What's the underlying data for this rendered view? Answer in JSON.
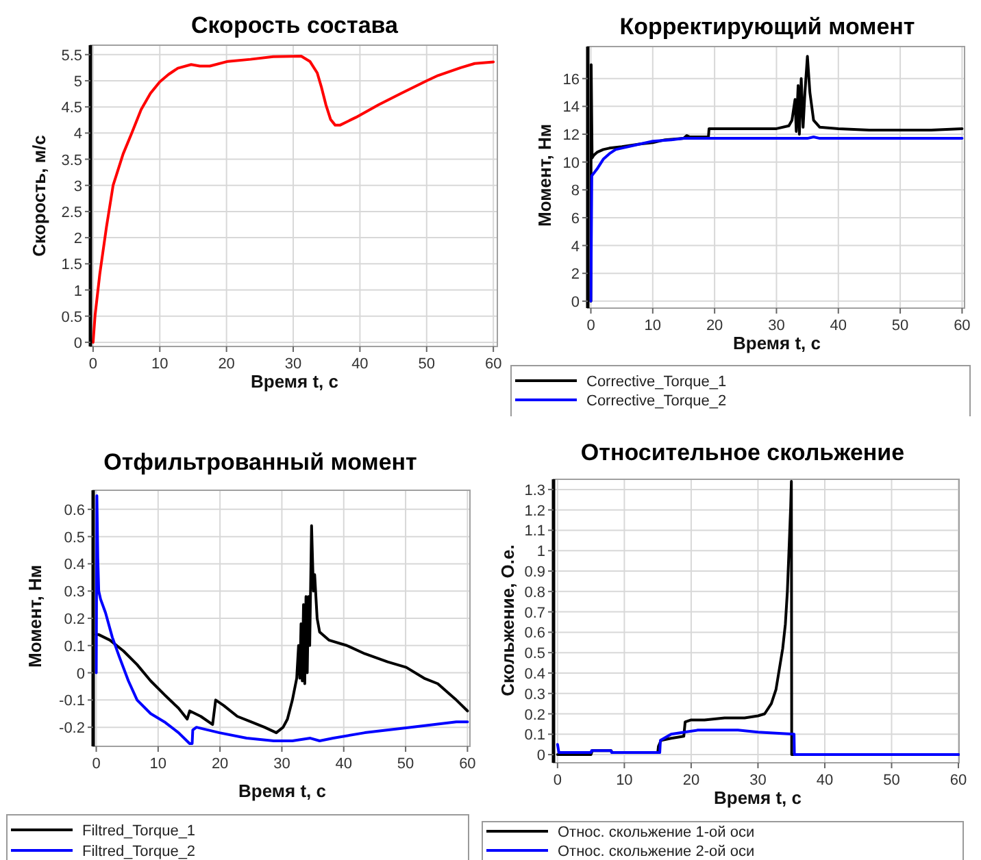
{
  "chart_data": [
    {
      "type": "line",
      "title": "Скорость состава",
      "xlabel": "Время t, с",
      "ylabel": "Скорость, м/с",
      "xlim": [
        -0.4,
        60.6
      ],
      "ylim": [
        -0.08,
        5.68
      ],
      "xticks": [
        0,
        10,
        20,
        30,
        40,
        50,
        60
      ],
      "yticks": [
        0,
        0.5,
        1,
        1.5,
        2,
        2.5,
        3,
        3.5,
        4,
        4.5,
        5,
        5.5
      ],
      "grid": true,
      "series": [
        {
          "color": "#ff0000",
          "x": [
            0,
            0.3,
            1,
            2,
            3,
            4.5,
            5.8,
            7.2,
            8.6,
            10,
            11.3,
            12.7,
            14.7,
            16,
            17.5,
            20.2,
            23.6,
            27,
            31.2,
            32.5,
            33.6,
            34.2,
            34.9,
            35.6,
            36.3,
            37,
            39.4,
            42.8,
            46.2,
            50,
            51.7,
            55.1,
            57.2,
            60
          ],
          "values": [
            0,
            0.52,
            1.3,
            2.2,
            3.0,
            3.6,
            4.0,
            4.45,
            4.76,
            4.98,
            5.12,
            5.24,
            5.31,
            5.28,
            5.28,
            5.37,
            5.41,
            5.46,
            5.47,
            5.37,
            5.15,
            4.89,
            4.54,
            4.26,
            4.15,
            4.15,
            4.3,
            4.54,
            4.76,
            5.0,
            5.1,
            5.25,
            5.33,
            5.36
          ]
        }
      ]
    },
    {
      "type": "line",
      "title": "Корректирующий момент",
      "xlabel": "Время t, с",
      "ylabel": "Момент, Нм",
      "xlim": [
        -0.5,
        60.4
      ],
      "ylim": [
        -0.5,
        18.3
      ],
      "xticks": [
        0,
        10,
        20,
        30,
        40,
        50,
        60
      ],
      "yticks": [
        0,
        2,
        4,
        6,
        8,
        10,
        12,
        14,
        16
      ],
      "grid": true,
      "legend": "bottom",
      "series": [
        {
          "name": "Corrective_Torque_1",
          "color": "#000000",
          "x": [
            0,
            0.05,
            0.2,
            0.5,
            1,
            2,
            3,
            5,
            8,
            10,
            12,
            15,
            15.5,
            16,
            19,
            19.1,
            25,
            30,
            32,
            32.5,
            33,
            33.2,
            33.5,
            33.7,
            34,
            34.3,
            34.6,
            35,
            35.4,
            36,
            37,
            40,
            45,
            50,
            55,
            60
          ],
          "values": [
            0,
            17,
            10.3,
            10.5,
            10.7,
            10.9,
            11.0,
            11.1,
            11.3,
            11.4,
            11.6,
            11.7,
            11.9,
            11.8,
            11.8,
            12.4,
            12.4,
            12.4,
            12.6,
            13,
            14.5,
            12.2,
            15.5,
            12,
            16,
            12.5,
            15,
            17.6,
            15,
            13,
            12.5,
            12.4,
            12.3,
            12.3,
            12.3,
            12.4
          ]
        },
        {
          "name": "Corrective_Torque_2",
          "color": "#0000ff",
          "x": [
            0,
            0.15,
            0.3,
            1,
            2,
            3,
            4,
            5,
            7,
            10,
            13,
            15,
            16,
            35,
            36,
            37,
            60
          ],
          "values": [
            0,
            9.0,
            9.1,
            9.5,
            10.2,
            10.6,
            10.9,
            11.0,
            11.2,
            11.5,
            11.6,
            11.7,
            11.7,
            11.7,
            11.8,
            11.7,
            11.7
          ]
        }
      ]
    },
    {
      "type": "line",
      "title": "Отфильтрованный момент",
      "xlabel": "Время t, с",
      "ylabel": "Момент, Нм",
      "xlim": [
        -0.5,
        60.4
      ],
      "ylim": [
        -0.27,
        0.67
      ],
      "xticks": [
        0,
        10,
        20,
        30,
        40,
        50,
        60
      ],
      "yticks": [
        -0.2,
        -0.1,
        0,
        0.1,
        0.2,
        0.3,
        0.4,
        0.5,
        0.6
      ],
      "grid": true,
      "legend": "bottom",
      "series": [
        {
          "name": "Filtred_Torque_1",
          "color": "#000000",
          "x": [
            0,
            0.4,
            2.2,
            4.4,
            6.6,
            8.8,
            11,
            13.3,
            14.7,
            15.1,
            16.9,
            18.8,
            19.3,
            20.6,
            22.8,
            25,
            27.2,
            29.1,
            30.2,
            30.9,
            31.7,
            32.4,
            32.7,
            32.9,
            33.1,
            33.3,
            33.5,
            33.7,
            33.9,
            34.1,
            34.3,
            34.5,
            34.8,
            35.1,
            35.3,
            35.7,
            36.1,
            37.6,
            40.5,
            43.4,
            47.1,
            50.1,
            53,
            55.2,
            58.2,
            60
          ],
          "values": [
            0.14,
            0.14,
            0.12,
            0.08,
            0.03,
            -0.03,
            -0.08,
            -0.13,
            -0.17,
            -0.14,
            -0.16,
            -0.19,
            -0.1,
            -0.12,
            -0.16,
            -0.18,
            -0.2,
            -0.22,
            -0.2,
            -0.17,
            -0.1,
            -0.02,
            0.1,
            -0.02,
            0.18,
            -0.03,
            0.25,
            -0.04,
            0.28,
            0,
            0.28,
            0.1,
            0.54,
            0.3,
            0.36,
            0.2,
            0.15,
            0.12,
            0.1,
            0.07,
            0.04,
            0.02,
            -0.02,
            -0.04,
            -0.1,
            -0.14
          ]
        },
        {
          "name": "Filtred_Torque_2",
          "color": "#0000ff",
          "x": [
            0,
            0.1,
            0.25,
            0.4,
            0.7,
            1.5,
            2.6,
            3.7,
            5.2,
            6.6,
            8.8,
            11,
            13.3,
            15.1,
            15.5,
            15.6,
            16.2,
            19.9,
            24.3,
            28.7,
            31.7,
            34.6,
            36.1,
            38.3,
            43.4,
            50.8,
            58.2,
            60
          ],
          "values": [
            0,
            0.65,
            0.42,
            0.3,
            0.27,
            0.22,
            0.13,
            0.06,
            -0.03,
            -0.1,
            -0.15,
            -0.18,
            -0.22,
            -0.26,
            -0.26,
            -0.21,
            -0.2,
            -0.22,
            -0.24,
            -0.25,
            -0.25,
            -0.24,
            -0.25,
            -0.24,
            -0.22,
            -0.2,
            -0.18,
            -0.18
          ]
        }
      ]
    },
    {
      "type": "line",
      "title": "Относительное скольжение",
      "xlabel": "Время t, с",
      "ylabel": "Скольжение, О.е.",
      "xlim": [
        -0.6,
        60.1
      ],
      "ylim": [
        -0.04,
        1.35
      ],
      "xticks": [
        0,
        10,
        20,
        30,
        40,
        50,
        60
      ],
      "yticks": [
        0,
        0.1,
        0.2,
        0.3,
        0.4,
        0.5,
        0.6,
        0.7,
        0.8,
        0.9,
        1,
        1.1,
        1.2,
        1.3
      ],
      "grid": true,
      "legend": "bottom",
      "series": [
        {
          "name": "Относ. скольжение 1-ой оси",
          "color": "#000000",
          "x": [
            0,
            5,
            5.2,
            8,
            8.2,
            15,
            15.1,
            15.5,
            17,
            18.9,
            19.1,
            20,
            22,
            25,
            28,
            30,
            31,
            32,
            32.7,
            33.2,
            33.7,
            34.1,
            34.4,
            34.7,
            34.9,
            35,
            35.05,
            60
          ],
          "values": [
            0,
            0,
            0.02,
            0.02,
            0.01,
            0.01,
            0.04,
            0.07,
            0.08,
            0.09,
            0.16,
            0.17,
            0.17,
            0.18,
            0.18,
            0.19,
            0.2,
            0.25,
            0.32,
            0.42,
            0.52,
            0.64,
            0.8,
            1.05,
            1.22,
            1.34,
            0,
            0
          ]
        },
        {
          "name": "Относ. скольжение 2-ой оси",
          "color": "#0000ff",
          "x": [
            0,
            0.2,
            5,
            5.1,
            8,
            8.1,
            15.3,
            15.4,
            17,
            19,
            21,
            25,
            27,
            30,
            35.4,
            35.45,
            60
          ],
          "values": [
            0.05,
            0.01,
            0.01,
            0.02,
            0.02,
            0.01,
            0.01,
            0.07,
            0.1,
            0.11,
            0.12,
            0.12,
            0.12,
            0.11,
            0.1,
            0,
            0
          ]
        }
      ]
    }
  ]
}
